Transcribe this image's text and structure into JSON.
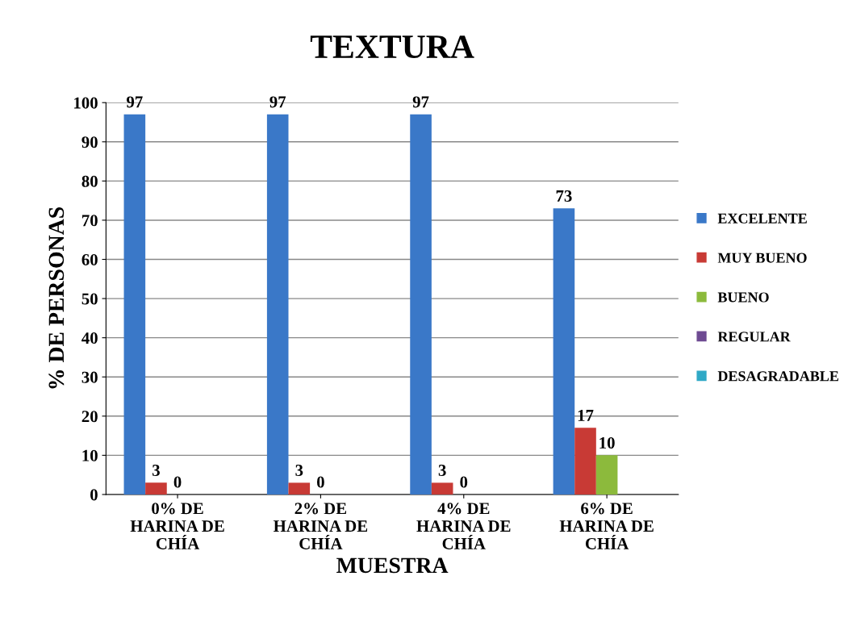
{
  "chart_data": {
    "type": "bar",
    "title": "TEXTURA",
    "xlabel": "MUESTRA",
    "ylabel": "% DE PERSONAS",
    "categories": [
      "0% DE\nHARINA DE\nCHÍA",
      "2% DE\nHARINA DE\nCHÍA",
      "4% DE\nHARINA DE\nCHÍA",
      "6% DE\nHARINA DE\nCHÍA"
    ],
    "series": [
      {
        "name": "EXCELENTE",
        "color": "#3a78c8",
        "values": [
          97,
          97,
          97,
          73
        ],
        "value_labels": [
          "97",
          "97",
          "97",
          "73"
        ]
      },
      {
        "name": "MUY BUENO",
        "color": "#c83a35",
        "values": [
          3,
          3,
          3,
          17
        ],
        "value_labels": [
          "3",
          "3",
          "3",
          "17"
        ]
      },
      {
        "name": "BUENO",
        "color": "#8cba3c",
        "values": [
          0,
          0,
          0,
          10
        ],
        "value_labels": [
          "0",
          "0",
          "0",
          "10"
        ]
      },
      {
        "name": "REGULAR",
        "color": "#6e4a92",
        "values": [
          0,
          0,
          0,
          0
        ]
      },
      {
        "name": "DESAGRADABLE",
        "color": "#2fa9c6",
        "values": [
          0,
          0,
          0,
          0
        ]
      }
    ],
    "ylim": [
      0,
      100
    ],
    "yticks": [
      0,
      10,
      20,
      30,
      40,
      50,
      60,
      70,
      80,
      90,
      100
    ],
    "grid": "y",
    "legend": "right"
  }
}
